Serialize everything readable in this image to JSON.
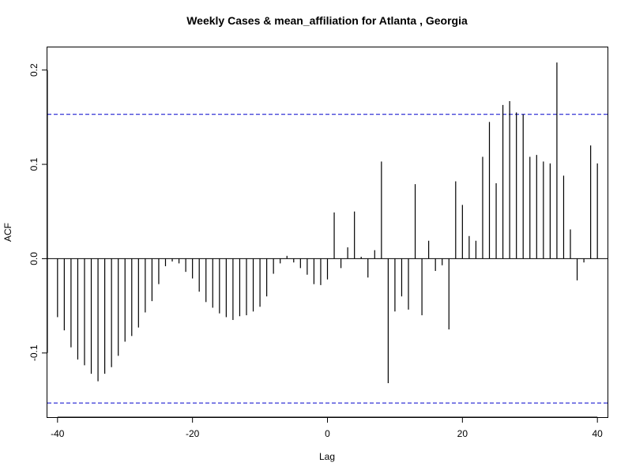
{
  "chart_data": {
    "type": "bar",
    "title": "Weekly Cases & mean_affiliation for Atlanta , Georgia",
    "xlabel": "Lag",
    "ylabel": "ACF",
    "xlim": [
      -41.5,
      41.5
    ],
    "ylim": [
      -0.168,
      0.224
    ],
    "x_ticks": [
      -40,
      -20,
      0,
      20,
      40
    ],
    "x_tick_labels": [
      "-40",
      "-20",
      "0",
      "20",
      "40"
    ],
    "y_ticks": [
      -0.1,
      0.0,
      0.1,
      0.2
    ],
    "y_tick_labels": [
      "-0.1",
      "0.0",
      "0.1",
      "0.2"
    ],
    "confidence_bound": 0.153,
    "colors": {
      "bars": "#000000",
      "confidence_line": "#0000cc",
      "zero_line": "#000000"
    },
    "lags": [
      -40,
      -39,
      -38,
      -37,
      -36,
      -35,
      -34,
      -33,
      -32,
      -31,
      -30,
      -29,
      -28,
      -27,
      -26,
      -25,
      -24,
      -23,
      -22,
      -21,
      -20,
      -19,
      -18,
      -17,
      -16,
      -15,
      -14,
      -13,
      -12,
      -11,
      -10,
      -9,
      -8,
      -7,
      -6,
      -5,
      -4,
      -3,
      -2,
      -1,
      0,
      1,
      2,
      3,
      4,
      5,
      6,
      7,
      8,
      9,
      10,
      11,
      12,
      13,
      14,
      15,
      16,
      17,
      18,
      19,
      20,
      21,
      22,
      23,
      24,
      25,
      26,
      27,
      28,
      29,
      30,
      31,
      32,
      33,
      34,
      35,
      36,
      37,
      38,
      39,
      40
    ],
    "values": [
      -0.062,
      -0.076,
      -0.094,
      -0.107,
      -0.113,
      -0.122,
      -0.13,
      -0.122,
      -0.115,
      -0.103,
      -0.088,
      -0.082,
      -0.073,
      -0.057,
      -0.045,
      -0.027,
      -0.008,
      -0.003,
      -0.005,
      -0.014,
      -0.021,
      -0.035,
      -0.046,
      -0.052,
      -0.058,
      -0.062,
      -0.065,
      -0.061,
      -0.06,
      -0.056,
      -0.051,
      -0.04,
      -0.016,
      -0.005,
      0.003,
      -0.004,
      -0.01,
      -0.017,
      -0.027,
      -0.028,
      -0.022,
      0.049,
      -0.01,
      0.012,
      0.05,
      0.002,
      -0.02,
      0.009,
      0.103,
      -0.132,
      -0.056,
      -0.04,
      -0.054,
      0.079,
      -0.06,
      0.019,
      -0.013,
      -0.007,
      -0.075,
      0.082,
      0.057,
      0.024,
      0.019,
      0.108,
      0.145,
      0.08,
      0.163,
      0.167,
      0.155,
      0.153,
      0.108,
      0.11,
      0.103,
      0.101,
      0.208,
      0.088,
      0.031,
      -0.023,
      -0.004,
      0.12,
      0.101
    ]
  }
}
